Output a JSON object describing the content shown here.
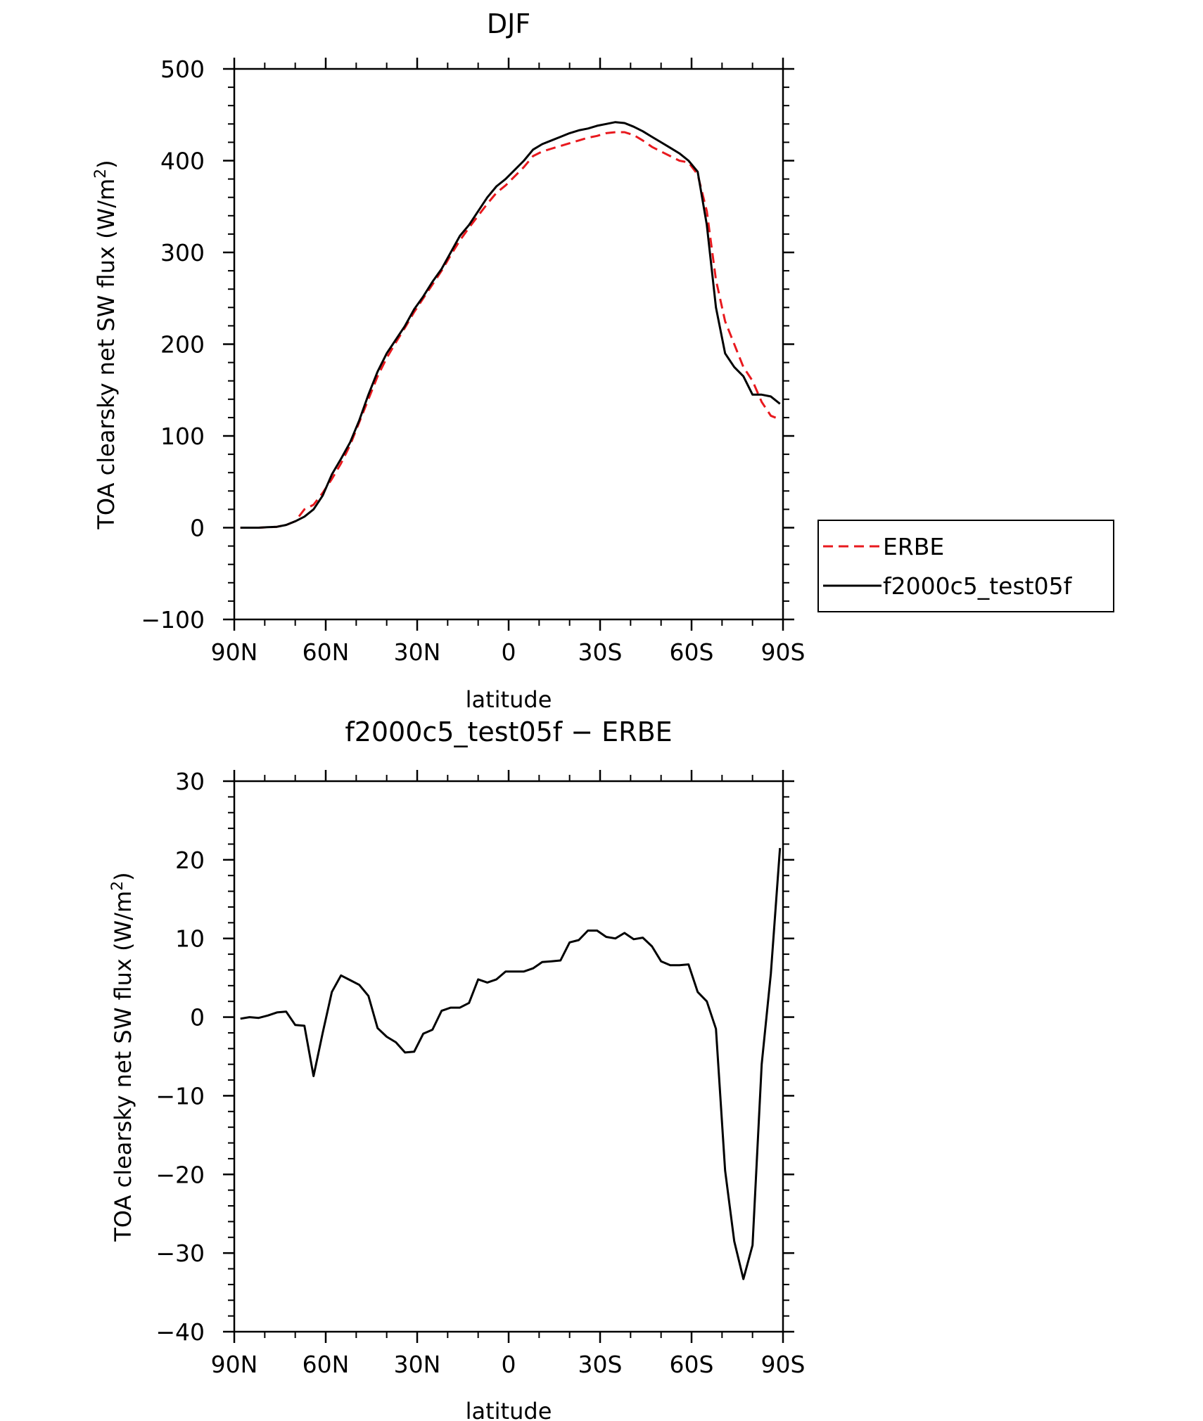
{
  "chart_data": [
    {
      "type": "line",
      "title": "DJF",
      "xlabel": "latitude",
      "ylabel": "TOA clearsky net SW flux (W/m",
      "ylabel_sup": "2",
      "ylabel_close": ")",
      "x_ticks": [
        {
          "value": -90,
          "label": "90N"
        },
        {
          "value": -60,
          "label": "60N"
        },
        {
          "value": -30,
          "label": "30N"
        },
        {
          "value": 0,
          "label": "0"
        },
        {
          "value": 30,
          "label": "30S"
        },
        {
          "value": 60,
          "label": "60S"
        },
        {
          "value": 90,
          "label": "90S"
        }
      ],
      "y_ticks": [
        {
          "value": -100,
          "label": "−100"
        },
        {
          "value": 0,
          "label": "0"
        },
        {
          "value": 100,
          "label": "100"
        },
        {
          "value": 200,
          "label": "200"
        },
        {
          "value": 300,
          "label": "300"
        },
        {
          "value": 400,
          "label": "400"
        },
        {
          "value": 500,
          "label": "500"
        }
      ],
      "xlim": [
        -90,
        90
      ],
      "ylim": [
        -100,
        500
      ],
      "grid": false,
      "legend_position": "right",
      "series": [
        {
          "name": "ERBE",
          "color": "#e8191e",
          "dash": true,
          "x": [
            -88,
            -85,
            -82,
            -79,
            -76,
            -73,
            -70,
            -67,
            -64,
            -61,
            -58,
            -55,
            -52,
            -49,
            -46,
            -43,
            -40,
            -37,
            -34,
            -31,
            -28,
            -25,
            -22,
            -19,
            -16,
            -13,
            -10,
            -7,
            -4,
            -1,
            2,
            5,
            8,
            11,
            14,
            17,
            20,
            23,
            26,
            29,
            32,
            35,
            38,
            41,
            44,
            47,
            50,
            53,
            56,
            59,
            62,
            65,
            68,
            71,
            74,
            77,
            80,
            83,
            86,
            89
          ],
          "y": [
            0,
            0,
            0,
            0.5,
            1,
            3,
            7,
            20,
            25,
            38,
            53,
            70,
            90,
            115,
            140,
            165,
            185,
            202,
            218,
            235,
            250,
            265,
            280,
            297,
            313,
            327,
            340,
            353,
            365,
            373,
            383,
            393,
            405,
            410,
            413,
            416,
            419,
            422,
            425,
            427,
            430,
            431,
            431,
            428,
            422,
            415,
            410,
            405,
            400,
            398,
            385,
            345,
            270,
            225,
            200,
            175,
            160,
            137,
            122,
            118
          ]
        },
        {
          "name": "f2000c5_test05f",
          "color": "#000000",
          "dash": false,
          "x": [
            -88,
            -85,
            -82,
            -79,
            -76,
            -73,
            -70,
            -67,
            -64,
            -61,
            -58,
            -55,
            -52,
            -49,
            -46,
            -43,
            -40,
            -37,
            -34,
            -31,
            -28,
            -25,
            -22,
            -19,
            -16,
            -13,
            -10,
            -7,
            -4,
            -1,
            2,
            5,
            8,
            11,
            14,
            17,
            20,
            23,
            26,
            29,
            32,
            35,
            38,
            41,
            44,
            47,
            50,
            53,
            56,
            59,
            62,
            65,
            68,
            71,
            74,
            77,
            80,
            83,
            86,
            89
          ],
          "y": [
            0,
            0,
            0,
            0.5,
            1,
            3,
            7,
            12,
            20,
            35,
            58,
            75,
            93,
            117,
            145,
            170,
            190,
            205,
            220,
            238,
            252,
            268,
            282,
            300,
            318,
            330,
            345,
            360,
            372,
            380,
            390,
            400,
            412,
            418,
            422,
            426,
            430,
            433,
            435,
            438,
            440,
            442,
            441,
            437,
            432,
            426,
            420,
            414,
            408,
            400,
            388,
            330,
            240,
            190,
            175,
            165,
            145,
            145,
            143,
            135
          ]
        }
      ]
    },
    {
      "type": "line",
      "title": "f2000c5_test05f − ERBE",
      "xlabel": "latitude",
      "ylabel": "TOA clearsky net SW flux (W/m",
      "ylabel_sup": "2",
      "ylabel_close": ")",
      "x_ticks": [
        {
          "value": -90,
          "label": "90N"
        },
        {
          "value": -60,
          "label": "60N"
        },
        {
          "value": -30,
          "label": "30N"
        },
        {
          "value": 0,
          "label": "0"
        },
        {
          "value": 30,
          "label": "30S"
        },
        {
          "value": 60,
          "label": "60S"
        },
        {
          "value": 90,
          "label": "90S"
        }
      ],
      "y_ticks": [
        {
          "value": -40,
          "label": "−40"
        },
        {
          "value": -30,
          "label": "−30"
        },
        {
          "value": -20,
          "label": "−20"
        },
        {
          "value": -10,
          "label": "−10"
        },
        {
          "value": 0,
          "label": "0"
        },
        {
          "value": 10,
          "label": "10"
        },
        {
          "value": 20,
          "label": "20"
        },
        {
          "value": 30,
          "label": "30"
        }
      ],
      "xlim": [
        -90,
        90
      ],
      "ylim": [
        -40,
        30
      ],
      "grid": false,
      "series": [
        {
          "name": "",
          "color": "#000000",
          "dash": false,
          "x": [
            -88,
            -85,
            -82,
            -79,
            -76,
            -73,
            -70,
            -67,
            -64,
            -61,
            -58,
            -55,
            -52,
            -49,
            -46,
            -43,
            -40,
            -37,
            -34,
            -31,
            -28,
            -25,
            -22,
            -19,
            -16,
            -13,
            -10,
            -7,
            -4,
            -1,
            2,
            5,
            8,
            11,
            14,
            17,
            20,
            23,
            26,
            29,
            32,
            35,
            38,
            41,
            44,
            47,
            50,
            53,
            56,
            59,
            62,
            65,
            68,
            71,
            74,
            77,
            80,
            83,
            86,
            89
          ],
          "y": [
            -0.2,
            0,
            -0.1,
            0.2,
            0.6,
            0.7,
            -1,
            -1.1,
            -7.5,
            -2,
            3.2,
            5.3,
            4.7,
            4.1,
            2.7,
            -1.4,
            -2.5,
            -3.2,
            -4.5,
            -4.4,
            -2.1,
            -1.6,
            0.8,
            1.2,
            1.2,
            1.8,
            4.8,
            4.4,
            4.8,
            5.8,
            5.8,
            5.8,
            6.2,
            7,
            7.1,
            7.2,
            9.5,
            9.8,
            11,
            11,
            10.2,
            10,
            10.7,
            9.9,
            10.1,
            9,
            7.1,
            6.6,
            6.6,
            6.7,
            3.2,
            2,
            -1.5,
            -19.5,
            -28.5,
            -33.3,
            -29,
            -6,
            5.5,
            21.5
          ]
        }
      ]
    }
  ]
}
